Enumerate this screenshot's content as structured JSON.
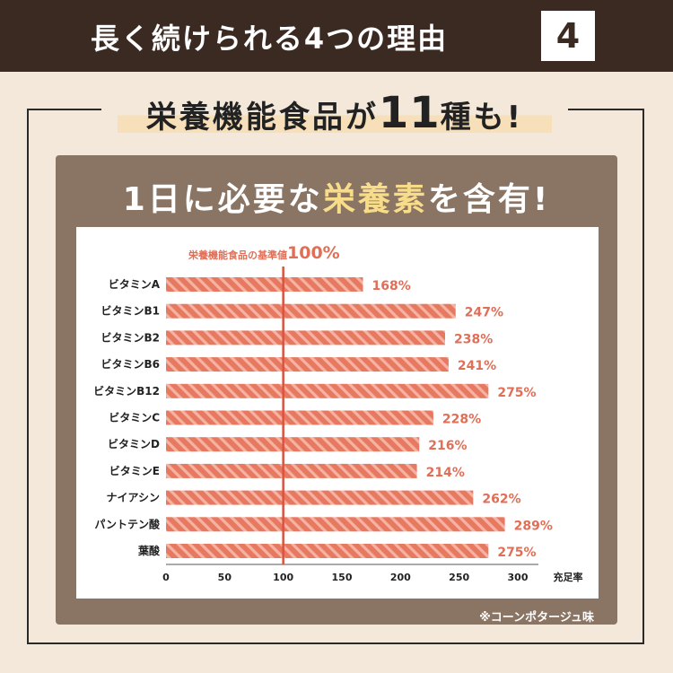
{
  "header": {
    "title": "長く続けられる4つの理由",
    "number": "4"
  },
  "headline": {
    "prefix": "栄養機能食品が",
    "count": "11",
    "suffix": "種も!"
  },
  "panel": {
    "title_part1": "1日に必要な",
    "title_highlight": "栄養素",
    "title_part2": "を含有!"
  },
  "note": "※コーンポタージュ味",
  "colors": {
    "bar": "#e87961",
    "bar_stripe": "#f4b3a3",
    "accent": "#e16e56",
    "ref_line": "#d9533f"
  },
  "chart_data": {
    "type": "bar",
    "orientation": "horizontal",
    "categories": [
      "ビタミンA",
      "ビタミンB1",
      "ビタミンB2",
      "ビタミンB6",
      "ビタミンB12",
      "ビタミンC",
      "ビタミンD",
      "ビタミンE",
      "ナイアシン",
      "パントテン酸",
      "葉酸"
    ],
    "values": [
      168,
      247,
      238,
      241,
      275,
      228,
      216,
      214,
      262,
      289,
      275
    ],
    "value_labels": [
      "168%",
      "247%",
      "238%",
      "241%",
      "275%",
      "228%",
      "216%",
      "214%",
      "262%",
      "289%",
      "275%"
    ],
    "xlim": [
      0,
      300
    ],
    "xticks": [
      0,
      50,
      100,
      150,
      200,
      250,
      300
    ],
    "xlabel": "充足率",
    "reference": {
      "value": 100,
      "label_prefix": "栄養機能食品の基準値",
      "label_value": "100%"
    }
  }
}
